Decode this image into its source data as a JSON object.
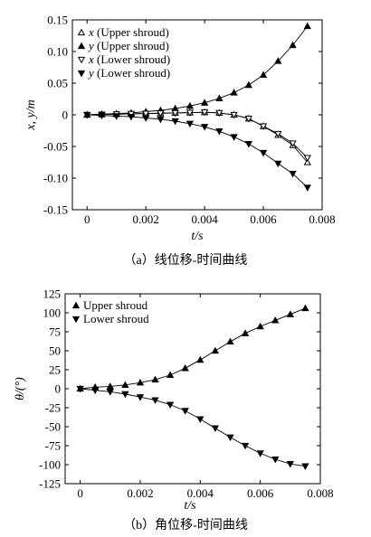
{
  "chart_data": [
    {
      "type": "line",
      "xlabel": "t/s",
      "ylabel": "x, y/m",
      "xlim": [
        -0.0005,
        0.008
      ],
      "ylim": [
        -0.15,
        0.15
      ],
      "xticks": [
        "0",
        "0.002",
        "0.004",
        "0.006",
        "0.008"
      ],
      "xtick_values": [
        0,
        0.002,
        0.004,
        0.006,
        0.008
      ],
      "yticks": [
        "0.15",
        "0.10",
        "0.05",
        "0",
        "-0.05",
        "-0.10",
        "-0.15"
      ],
      "ytick_values": [
        0.15,
        0.1,
        0.05,
        0,
        -0.05,
        -0.1,
        -0.15
      ],
      "caption": "（a）线位移-时间曲线",
      "legend_position": "top-left",
      "x": [
        0,
        0.0005,
        0.001,
        0.0015,
        0.002,
        0.0025,
        0.003,
        0.0035,
        0.004,
        0.0045,
        0.005,
        0.0055,
        0.006,
        0.0065,
        0.007,
        0.0075
      ],
      "series": [
        {
          "name": "x (Upper shroud)",
          "marker": "triangle-up-open",
          "values": [
            0,
            0.0005,
            0.001,
            0.0015,
            0.002,
            0.0025,
            0.003,
            0.0035,
            0.004,
            0.003,
            0,
            -0.006,
            -0.018,
            -0.032,
            -0.048,
            -0.075
          ]
        },
        {
          "name": "y (Upper shroud)",
          "marker": "triangle-up-filled",
          "values": [
            0,
            0.001,
            0.002,
            0.003,
            0.005,
            0.007,
            0.01,
            0.014,
            0.019,
            0.026,
            0.035,
            0.047,
            0.063,
            0.085,
            0.11,
            0.14
          ]
        },
        {
          "name": "x (Lower shroud)",
          "marker": "triangle-down-open",
          "values": [
            0,
            0.0005,
            0.001,
            0.0015,
            0.002,
            0.0025,
            0.003,
            0.0035,
            0.004,
            0.003,
            0,
            -0.006,
            -0.018,
            -0.03,
            -0.045,
            -0.068
          ]
        },
        {
          "name": "y (Lower shroud)",
          "marker": "triangle-down-filled",
          "values": [
            0,
            -0.001,
            -0.002,
            -0.003,
            -0.005,
            -0.007,
            -0.01,
            -0.014,
            -0.019,
            -0.026,
            -0.035,
            -0.046,
            -0.06,
            -0.077,
            -0.093,
            -0.115
          ]
        }
      ]
    },
    {
      "type": "line",
      "xlabel": "t/s",
      "ylabel": "θ/(°)",
      "xlim": [
        -0.0005,
        0.008
      ],
      "ylim": [
        -125,
        125
      ],
      "xticks": [
        "0",
        "0.002",
        "0.004",
        "0.006",
        "0.008"
      ],
      "xtick_values": [
        0,
        0.002,
        0.004,
        0.006,
        0.008
      ],
      "yticks": [
        "125",
        "100",
        "75",
        "50",
        "25",
        "0",
        "-25",
        "-50",
        "-75",
        "-100",
        "-125"
      ],
      "ytick_values": [
        125,
        100,
        75,
        50,
        25,
        0,
        -25,
        -50,
        -75,
        -100,
        -125
      ],
      "caption": "（b）角位移-时间曲线",
      "legend_position": "top-left",
      "x": [
        0,
        0.0005,
        0.001,
        0.0015,
        0.002,
        0.0025,
        0.003,
        0.0035,
        0.004,
        0.0045,
        0.005,
        0.0055,
        0.006,
        0.0065,
        0.007,
        0.0075
      ],
      "series": [
        {
          "name": "Upper shroud",
          "marker": "triangle-up-filled",
          "values": [
            0,
            2,
            3,
            5,
            8,
            12,
            18,
            27,
            38,
            50,
            62,
            73,
            82,
            90,
            98,
            106
          ]
        },
        {
          "name": "Lower shroud",
          "marker": "triangle-down-filled",
          "values": [
            0,
            -2,
            -4,
            -7,
            -11,
            -15,
            -21,
            -29,
            -40,
            -52,
            -64,
            -75,
            -85,
            -93,
            -99,
            -102
          ]
        }
      ]
    }
  ]
}
